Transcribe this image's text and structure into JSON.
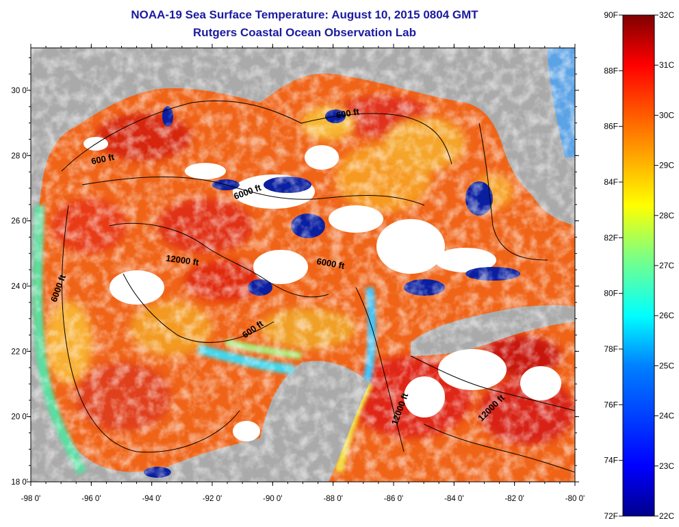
{
  "header": {
    "title": "NOAA-19 Sea Surface Temperature:  August 10, 2015 0804 GMT",
    "subtitle": "Rutgers Coastal Ocean Observation Lab"
  },
  "map": {
    "lon_ticks": [
      "-98 0'",
      "-96 0'",
      "-94 0'",
      "-92 0'",
      "-90 0'",
      "-88 0'",
      "-86 0'",
      "-84 0'",
      "-82 0'",
      "-80 0'"
    ],
    "lat_ticks": [
      "30 0'",
      "28 0'",
      "26 0'",
      "24 0'",
      "22 0'",
      "20 0'",
      "18 0'"
    ],
    "contour_labels": [
      {
        "text": "600 ft",
        "lon": -95.6,
        "lat": 27.8,
        "rot": -12
      },
      {
        "text": "600 ft",
        "lon": -87.5,
        "lat": 29.2,
        "rot": -10
      },
      {
        "text": "6000 ft",
        "lon": -90.8,
        "lat": 26.8,
        "rot": -20
      },
      {
        "text": "12000 ft",
        "lon": -93.0,
        "lat": 24.7,
        "rot": 8
      },
      {
        "text": "6000 ft",
        "lon": -97.0,
        "lat": 23.9,
        "rot": -70
      },
      {
        "text": "6000 ft",
        "lon": -88.1,
        "lat": 24.6,
        "rot": 10
      },
      {
        "text": "600 ft",
        "lon": -90.6,
        "lat": 22.6,
        "rot": -35
      },
      {
        "text": "12000 ft",
        "lon": -85.7,
        "lat": 20.2,
        "rot": -70
      },
      {
        "text": "12000 ft",
        "lon": -82.7,
        "lat": 20.2,
        "rot": -45
      }
    ],
    "colors": {
      "land": "#aaaaaa",
      "cloud": "#ffffff",
      "frame": "#000000"
    }
  },
  "colorbar": {
    "fahrenheit": [
      "90F",
      "88F",
      "86F",
      "84F",
      "82F",
      "80F",
      "78F",
      "76F",
      "74F",
      "72F"
    ],
    "celsius": [
      "32C",
      "31C",
      "30C",
      "29C",
      "28C",
      "27C",
      "26C",
      "25C",
      "24C",
      "23C",
      "22C"
    ],
    "range_f": [
      72,
      90
    ],
    "range_c": [
      22,
      32
    ],
    "stops": [
      "#00008c",
      "#0000ff",
      "#0080ff",
      "#00ffff",
      "#80ff80",
      "#ffff00",
      "#ff8000",
      "#ff0000",
      "#800000"
    ]
  }
}
